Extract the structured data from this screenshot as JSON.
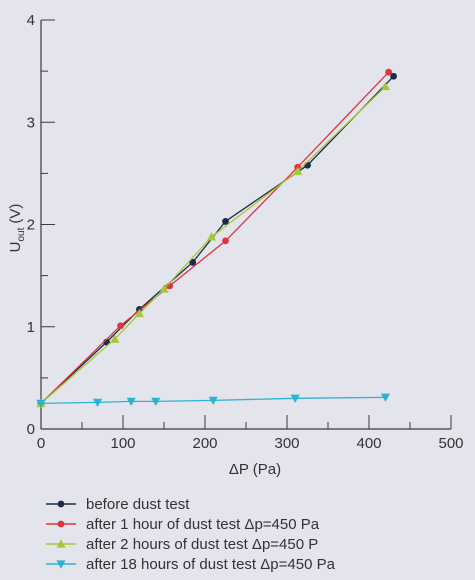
{
  "chart_data": {
    "type": "line",
    "title": "",
    "xlabel": "ΔP (Pa)",
    "ylabel_main": "U",
    "ylabel_sub": "out",
    "ylabel_unit": "(V)",
    "xlim": [
      0,
      500
    ],
    "ylim": [
      0,
      4
    ],
    "x_ticks": [
      0,
      100,
      200,
      300,
      400,
      500
    ],
    "y_ticks": [
      0,
      1,
      2,
      3,
      4
    ],
    "x_minor_step": 50,
    "y_minor_step": 0.5,
    "grid": false,
    "legend_position": "bottom",
    "series": [
      {
        "name": "before dust test",
        "color": "#1c2b48",
        "marker": "circle",
        "points": [
          [
            0,
            0.25
          ],
          [
            80,
            0.85
          ],
          [
            120,
            1.17
          ],
          [
            185,
            1.63
          ],
          [
            225,
            2.03
          ],
          [
            325,
            2.58
          ],
          [
            430,
            3.45
          ]
        ]
      },
      {
        "name": "after 1 hour of dust test Δp=450 Pa",
        "color": "#e0343c",
        "marker": "circle",
        "points": [
          [
            0,
            0.25
          ],
          [
            97,
            1.01
          ],
          [
            157,
            1.4
          ],
          [
            225,
            1.84
          ],
          [
            313,
            2.56
          ],
          [
            424,
            3.49
          ]
        ]
      },
      {
        "name": "after 2 hours of dust test Δp=450 P",
        "color": "#a4c83a",
        "marker": "triangle-up",
        "points": [
          [
            0,
            0.25
          ],
          [
            90,
            0.88
          ],
          [
            120,
            1.13
          ],
          [
            150,
            1.37
          ],
          [
            208,
            1.88
          ],
          [
            313,
            2.52
          ],
          [
            420,
            3.35
          ]
        ]
      },
      {
        "name": "after 18 hours of dust test Δp=450 Pa",
        "color": "#2ab3d6",
        "marker": "triangle-down",
        "points": [
          [
            0,
            0.25
          ],
          [
            69,
            0.26
          ],
          [
            110,
            0.27
          ],
          [
            140,
            0.27
          ],
          [
            210,
            0.28
          ],
          [
            310,
            0.3
          ],
          [
            420,
            0.31
          ]
        ]
      }
    ]
  }
}
